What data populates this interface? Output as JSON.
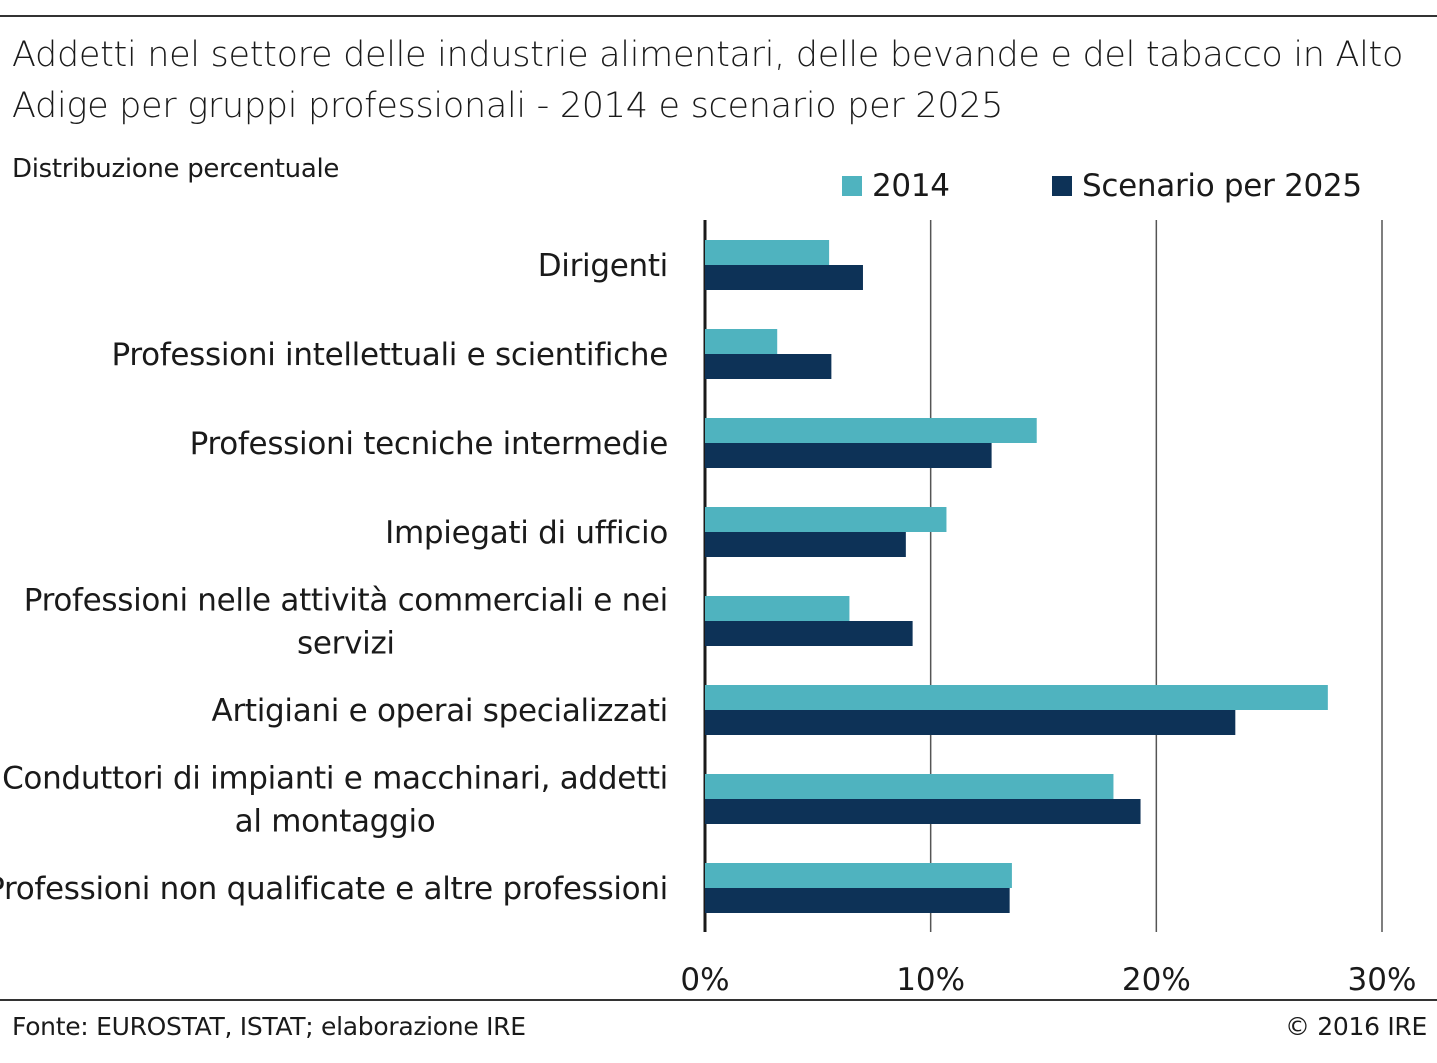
{
  "header": {
    "title": "Addetti nel settore delle industrie alimentari, delle bevande e del tabacco in Alto Adige per gruppi professionali - 2014 e scenario per 2025",
    "subtitle": "Distribuzione percentuale"
  },
  "footer": {
    "source": "Fonte: EUROSTAT, ISTAT; elaborazione IRE",
    "copyright": "© 2016 IRE"
  },
  "colors": {
    "series_2014": "#4fb3bf",
    "series_2025": "#0d3257",
    "grid": "#333333"
  },
  "chart_data": {
    "type": "bar",
    "orientation": "horizontal",
    "categories": [
      [
        "Dirigenti"
      ],
      [
        "Professioni intellettuali e scientifiche"
      ],
      [
        "Professioni tecniche intermedie"
      ],
      [
        "Impiegati di ufficio"
      ],
      [
        "Professioni nelle attività commerciali e nei",
        "servizi"
      ],
      [
        "Artigiani e operai specializzati"
      ],
      [
        "Conduttori di impianti e macchinari, addetti",
        "al montaggio"
      ],
      [
        "Professioni non qualificate e altre professioni"
      ]
    ],
    "series": [
      {
        "name": "2014",
        "values": [
          5.5,
          3.2,
          14.7,
          10.7,
          6.4,
          27.6,
          18.1,
          13.6
        ]
      },
      {
        "name": "Scenario per 2025",
        "values": [
          7.0,
          5.6,
          12.7,
          8.9,
          9.2,
          23.5,
          19.3,
          13.5
        ]
      }
    ],
    "xlim": [
      0,
      30
    ],
    "xticks": [
      "0%",
      "10%",
      "20%",
      "30%"
    ],
    "xtick_values": [
      0,
      10,
      20,
      30
    ],
    "grid": true,
    "legend_position": "top-right"
  }
}
